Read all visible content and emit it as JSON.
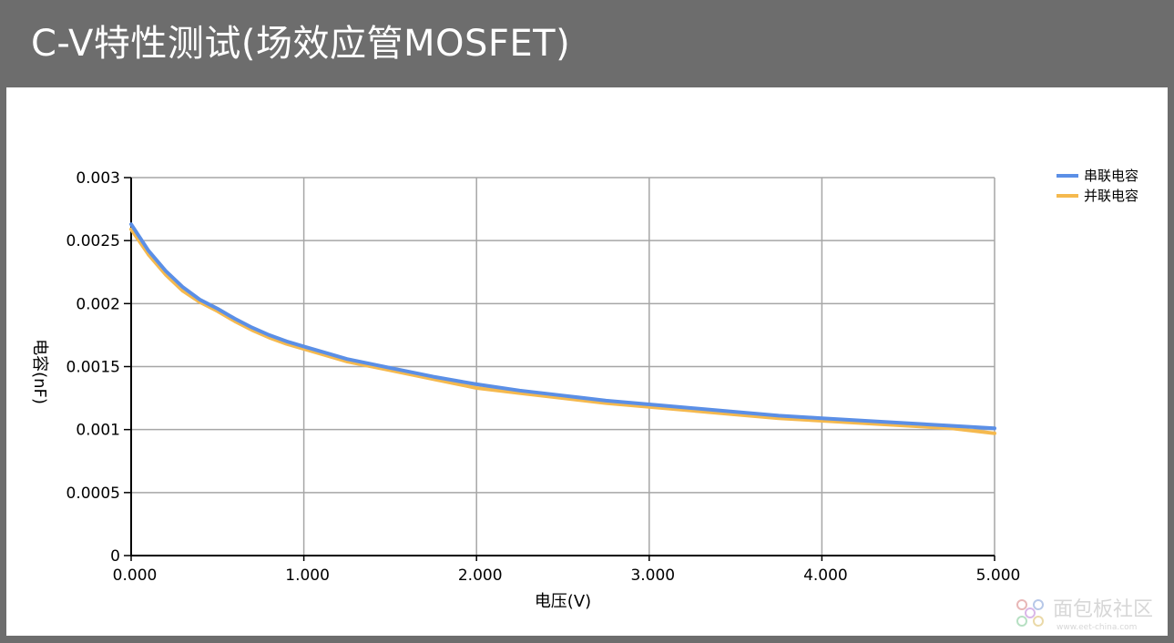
{
  "header": {
    "title": "C-V特性测试(场效应管MOSFET)"
  },
  "chart_data": {
    "type": "line",
    "xlabel": "电压(V)",
    "ylabel": "电容(nF)",
    "xlim": [
      0,
      5
    ],
    "ylim": [
      0,
      0.003
    ],
    "x_ticks": [
      "0.000",
      "1.000",
      "2.000",
      "3.000",
      "4.000",
      "5.000"
    ],
    "y_ticks": [
      "0",
      "0.0005",
      "0.001",
      "0.0015",
      "0.002",
      "0.0025",
      "0.003"
    ],
    "grid": true,
    "legend_position": "top-right",
    "x": [
      0.0,
      0.1,
      0.2,
      0.3,
      0.4,
      0.5,
      0.6,
      0.7,
      0.8,
      0.9,
      1.0,
      1.25,
      1.5,
      1.75,
      2.0,
      2.25,
      2.5,
      2.75,
      3.0,
      3.25,
      3.5,
      3.75,
      4.0,
      4.25,
      4.5,
      4.75,
      5.0
    ],
    "series": [
      {
        "name": "串联电容",
        "color": "#5b8fe6",
        "values": [
          0.00263,
          0.00242,
          0.00226,
          0.00213,
          0.00203,
          0.00196,
          0.00188,
          0.00181,
          0.00175,
          0.0017,
          0.00166,
          0.00156,
          0.00149,
          0.00142,
          0.00136,
          0.00131,
          0.00127,
          0.00123,
          0.0012,
          0.00117,
          0.00114,
          0.00111,
          0.00109,
          0.00107,
          0.00105,
          0.00103,
          0.00101
        ]
      },
      {
        "name": "并联电容",
        "color": "#f5b94e",
        "values": [
          0.00259,
          0.00239,
          0.00223,
          0.0021,
          0.00201,
          0.00194,
          0.00186,
          0.00179,
          0.00173,
          0.00168,
          0.00164,
          0.00154,
          0.00147,
          0.0014,
          0.00133,
          0.00129,
          0.00125,
          0.00121,
          0.00118,
          0.00115,
          0.00112,
          0.00109,
          0.00107,
          0.00105,
          0.00103,
          0.00101,
          0.00097
        ]
      }
    ]
  },
  "watermark": {
    "text": "面包板社区",
    "sub": "www.eet-china.com"
  }
}
